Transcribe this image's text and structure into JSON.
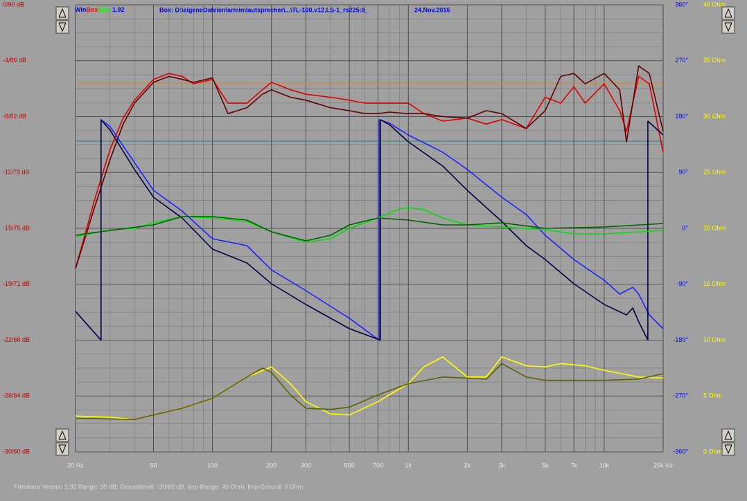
{
  "chart_data": {
    "type": "line",
    "header": {
      "app_name_parts": [
        {
          "text": "Win",
          "color": "#0000ff"
        },
        {
          "text": "Box",
          "color": "#ff0000"
        },
        {
          "text": "Sim",
          "color": "#00ff00"
        },
        {
          "text": "1.92",
          "color": "#0000ff"
        }
      ],
      "box": "Box: D:\\eigeneDateien\\armin\\lautsprecher\\...\\TL-160.v12.LS-1_rs225:8_",
      "date": "24.Nov.2016"
    },
    "footer": "Freeware Version 1.92  Range: 30 dB, Groundlevel: -30/60 dB, Imp-Range: 40 Ohm, Imp-Ground: 0 Ohm",
    "log_x": true,
    "grid": true,
    "xlim": [
      20,
      20000
    ],
    "xticks": [
      {
        "value": 20,
        "label": "20 Hz"
      },
      50,
      100,
      200,
      300,
      500,
      700,
      {
        "value": 1000,
        "label": "1k"
      },
      {
        "value": 2000,
        "label": "2k"
      },
      {
        "value": 3000,
        "label": "3k"
      },
      {
        "value": 5000,
        "label": "5k"
      },
      {
        "value": 7000,
        "label": "7k"
      },
      {
        "value": 10000,
        "label": "10k"
      },
      {
        "value": 20000,
        "label": "20k Hz"
      }
    ],
    "ylim": [
      -30,
      0
    ],
    "ycolor": "#c00000",
    "yticks": [
      {
        "value": 0,
        "label": "0/90 dB"
      },
      {
        "value": -3.75,
        "label": "-4/86 dB"
      },
      {
        "value": -7.5,
        "label": "-8/82 dB"
      },
      {
        "value": -11.25,
        "label": "-11/79 dB"
      },
      {
        "value": -15,
        "label": "-15/75 dB"
      },
      {
        "value": -18.75,
        "label": "-19/71 dB"
      },
      {
        "value": -22.5,
        "label": "-22/68 dB"
      },
      {
        "value": -26.25,
        "label": "-26/64 dB"
      },
      {
        "value": -30,
        "label": "-30/60 dB"
      }
    ],
    "y2lim": [
      -360,
      360
    ],
    "y2color": "#0000ff",
    "y2ticks": [
      {
        "value": 360,
        "label": "360°"
      },
      {
        "value": 270,
        "label": "270°"
      },
      {
        "value": 180,
        "label": "180°"
      },
      {
        "value": 90,
        "label": "90°"
      },
      {
        "value": 0,
        "label": "0°"
      },
      {
        "value": -90,
        "label": "-90°"
      },
      {
        "value": -180,
        "label": "-180°"
      },
      {
        "value": -270,
        "label": "-270°"
      },
      {
        "value": -360,
        "label": "-360°"
      }
    ],
    "y3lim": [
      0,
      40
    ],
    "y3color": "#ffff00",
    "y3ticks": [
      {
        "value": 40,
        "label": "40 Ohm"
      },
      {
        "value": 35,
        "label": "35 Ohm"
      },
      {
        "value": 30,
        "label": "30 Ohm"
      },
      {
        "value": 25,
        "label": "25 Ohm"
      },
      {
        "value": 20,
        "label": "20 Ohm"
      },
      {
        "value": 15,
        "label": "15 Ohm"
      },
      {
        "value": 10,
        "label": "10 Ohm"
      },
      {
        "value": 5,
        "label": "5 Ohm"
      },
      {
        "value": 0,
        "label": "0 Ohm"
      }
    ],
    "reference_lines": [
      {
        "value": -5.25,
        "color": "#e08020"
      },
      {
        "value": -9.15,
        "color": "#208080"
      }
    ],
    "series": [
      {
        "color": "#e00000",
        "axis": "y",
        "x": [
          20,
          25,
          30,
          35,
          40,
          50,
          60,
          70,
          80,
          100,
          120,
          150,
          180,
          200,
          250,
          300,
          400,
          500,
          600,
          700,
          800,
          1000,
          1200,
          1500,
          2000,
          2500,
          3000,
          4000,
          5000,
          6000,
          7000,
          8000,
          10000,
          12000,
          13000,
          15000,
          17000,
          20000
        ],
        "values": [
          -17.7,
          -13.1,
          -9.7,
          -7.6,
          -6.4,
          -5.0,
          -4.6,
          -4.8,
          -5.3,
          -5.0,
          -6.6,
          -6.6,
          -5.7,
          -5.2,
          -5.7,
          -6.0,
          -6.2,
          -6.4,
          -6.6,
          -6.6,
          -6.6,
          -6.6,
          -7.3,
          -7.8,
          -7.6,
          -8.0,
          -7.7,
          -8.3,
          -6.2,
          -6.6,
          -5.5,
          -6.6,
          -5.3,
          -7.1,
          -8.5,
          -4.8,
          -5.3,
          -9.9
        ]
      },
      {
        "color": "#600000",
        "axis": "y",
        "x": [
          20,
          25,
          30,
          35,
          40,
          50,
          60,
          70,
          80,
          100,
          120,
          150,
          180,
          200,
          250,
          300,
          400,
          500,
          600,
          700,
          800,
          1000,
          1200,
          1500,
          2000,
          2500,
          3000,
          4000,
          5000,
          6000,
          7000,
          8000,
          10000,
          12000,
          13000,
          15000,
          17000,
          20000
        ],
        "values": [
          -17.7,
          -13.6,
          -10.4,
          -8.0,
          -6.6,
          -5.2,
          -4.8,
          -5.0,
          -5.2,
          -4.9,
          -7.3,
          -6.9,
          -6.0,
          -5.7,
          -6.2,
          -6.4,
          -6.9,
          -7.1,
          -7.3,
          -7.3,
          -7.2,
          -7.3,
          -7.3,
          -7.5,
          -7.6,
          -7.1,
          -7.3,
          -8.3,
          -7.1,
          -4.8,
          -4.6,
          -5.3,
          -4.6,
          -5.7,
          -9.2,
          -4.1,
          -4.6,
          -8.5
        ]
      },
      {
        "color": "#2020ff",
        "axis": "y2",
        "x": [
          20,
          27,
          27,
          30,
          40,
          50,
          70,
          100,
          150,
          200,
          300,
          500,
          710,
          710,
          800,
          1000,
          1500,
          2000,
          3000,
          4000,
          5000,
          7000,
          10000,
          12000,
          14000,
          15000,
          17000,
          20000
        ],
        "values": [
          -133.8,
          -180,
          175,
          163.9,
          105.9,
          61.3,
          27.9,
          -16.7,
          -27.9,
          -66.9,
          -100.3,
          -144.9,
          -180,
          175,
          169.5,
          150.5,
          122.6,
          94.8,
          50.2,
          22.3,
          -11.1,
          -50.2,
          -83.6,
          -105.9,
          -94.8,
          -105.9,
          -139.4,
          -161.6
        ]
      },
      {
        "color": "#000040",
        "axis": "y2",
        "x": [
          20,
          27,
          27,
          30,
          40,
          50,
          70,
          100,
          150,
          200,
          300,
          500,
          720,
          720,
          800,
          1000,
          1500,
          2000,
          3000,
          4000,
          5000,
          7000,
          10000,
          13000,
          14000,
          15000,
          16700,
          16700,
          20000
        ],
        "values": [
          -133.8,
          -180,
          175,
          158.3,
          94.8,
          50.2,
          16.7,
          -33.4,
          -55.7,
          -89.2,
          -122.6,
          -161.6,
          -180,
          175,
          167.2,
          139.4,
          100.3,
          61.3,
          11.1,
          -27.9,
          -50.2,
          -89.2,
          -122.6,
          -139.4,
          -128.2,
          -150.5,
          -180,
          172.8,
          150.5
        ]
      },
      {
        "color": "#00e000",
        "axis": "y2",
        "x": [
          20,
          30,
          40,
          50,
          70,
          100,
          150,
          200,
          300,
          400,
          500,
          700,
          900,
          1000,
          1200,
          1500,
          2000,
          3000,
          5000,
          7000,
          10000,
          20000
        ],
        "values": [
          -13.4,
          -2.2,
          0,
          8.9,
          19.0,
          16.7,
          11.1,
          -5.6,
          -22.3,
          -16.7,
          0,
          16.7,
          31.2,
          33.4,
          30.1,
          16.7,
          5.6,
          2.2,
          -2.2,
          -8.9,
          -8.9,
          -3.3
        ]
      },
      {
        "color": "#006000",
        "axis": "y2",
        "x": [
          20,
          30,
          50,
          70,
          100,
          150,
          200,
          300,
          400,
          500,
          700,
          1000,
          1500,
          2000,
          3000,
          5000,
          10000,
          20000
        ],
        "values": [
          -11.1,
          -3.3,
          5.6,
          19.0,
          19.0,
          13.4,
          -5.6,
          -20.1,
          -11.1,
          5.6,
          16.7,
          13.4,
          5.6,
          5.6,
          8.9,
          0,
          2.2,
          7.8
        ]
      },
      {
        "color": "#ffff00",
        "axis": "y3",
        "x": [
          20,
          30,
          40,
          50,
          70,
          100,
          150,
          200,
          250,
          300,
          400,
          500,
          700,
          1000,
          1200,
          1500,
          2000,
          2500,
          3000,
          4000,
          5000,
          6000,
          8000,
          10000,
          15000,
          20000
        ],
        "values": [
          3.2,
          3.1,
          2.9,
          3.3,
          3.9,
          4.8,
          6.7,
          7.6,
          6.1,
          4.5,
          3.4,
          3.3,
          4.5,
          6.1,
          7.6,
          8.5,
          6.7,
          6.7,
          8.5,
          7.7,
          7.6,
          7.9,
          7.7,
          7.3,
          6.7,
          6.6
        ]
      },
      {
        "color": "#606000",
        "axis": "y3",
        "x": [
          20,
          40,
          50,
          70,
          100,
          150,
          180,
          200,
          250,
          300,
          400,
          500,
          700,
          1000,
          1500,
          2000,
          2500,
          3000,
          4000,
          5000,
          10000,
          15000,
          20000
        ],
        "values": [
          3.0,
          2.9,
          3.3,
          3.9,
          4.8,
          6.7,
          7.5,
          7.1,
          5.1,
          3.9,
          3.8,
          4.0,
          5.1,
          6.1,
          6.7,
          6.6,
          6.5,
          7.9,
          6.7,
          6.4,
          6.4,
          6.5,
          7.0
        ]
      }
    ]
  }
}
